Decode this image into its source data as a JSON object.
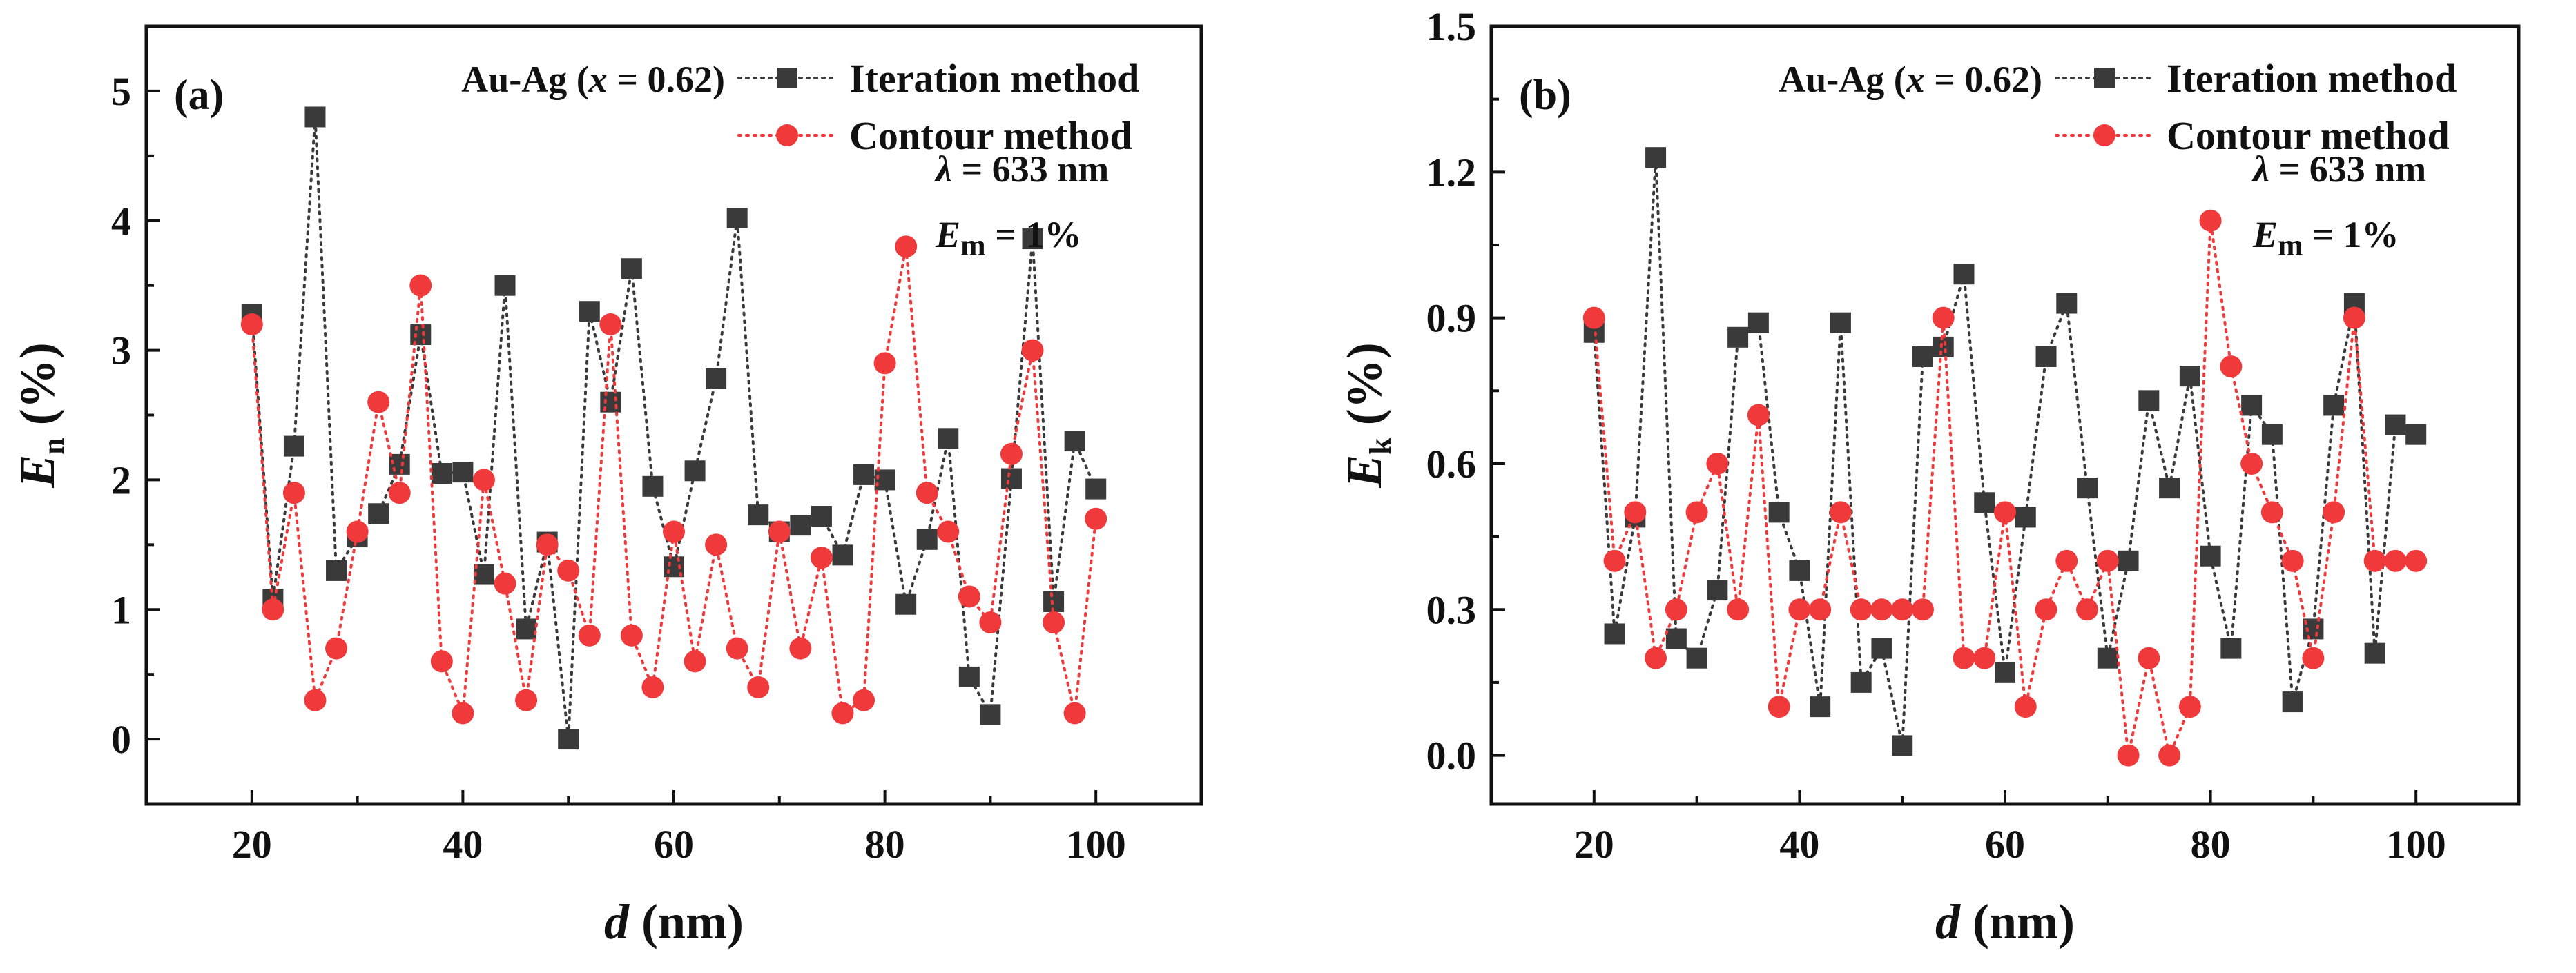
{
  "chart_data": [
    {
      "type": "line",
      "panel_label": "(a)",
      "xlabel": {
        "var": "d",
        "unit": "(nm)"
      },
      "ylabel": {
        "var": "E",
        "sub": "n",
        "unit": "(%)"
      },
      "xlim": [
        10,
        110
      ],
      "ylim": [
        -0.5,
        5.5
      ],
      "xticks": [
        20,
        40,
        60,
        80,
        100
      ],
      "yticks": [
        0,
        1,
        2,
        3,
        4,
        5
      ],
      "ytick_labels": [
        "0",
        "1",
        "2",
        "3",
        "4",
        "5"
      ],
      "annotation": {
        "material": "Au-Ag (",
        "material_var": "x",
        "material_value": " = 0.62)",
        "lambda_symbol": "λ",
        "lambda_value": " = 633 nm",
        "em_var": "E",
        "em_sub": "m",
        "em_value": " = 1%"
      },
      "x": [
        20,
        22,
        24,
        26,
        28,
        30,
        32,
        34,
        36,
        38,
        40,
        42,
        44,
        46,
        48,
        50,
        52,
        54,
        56,
        58,
        60,
        62,
        64,
        66,
        68,
        70,
        72,
        74,
        76,
        78,
        80,
        82,
        84,
        86,
        88,
        90,
        92,
        94,
        96,
        98,
        100
      ],
      "series": [
        {
          "name": "Iteration method",
          "color": "#3a3a3a",
          "marker": "square",
          "values": [
            3.28,
            1.08,
            2.26,
            4.8,
            1.3,
            1.56,
            1.74,
            2.12,
            3.12,
            2.05,
            2.06,
            1.27,
            3.5,
            0.85,
            1.52,
            0.0,
            3.3,
            2.6,
            3.63,
            1.95,
            1.33,
            2.07,
            2.78,
            4.02,
            1.73,
            1.6,
            1.65,
            1.72,
            1.42,
            2.04,
            2.0,
            1.04,
            1.54,
            2.32,
            0.48,
            0.19,
            2.01,
            3.86,
            1.06,
            2.3,
            1.93
          ]
        },
        {
          "name": "Contour method",
          "color": "#f0393b",
          "marker": "circle",
          "values": [
            3.2,
            1.0,
            1.9,
            0.3,
            0.7,
            1.6,
            2.6,
            1.9,
            3.5,
            0.6,
            0.2,
            2.0,
            1.2,
            0.3,
            1.5,
            1.3,
            0.8,
            3.2,
            0.8,
            0.4,
            1.6,
            0.6,
            1.5,
            0.7,
            0.4,
            1.6,
            0.7,
            1.4,
            0.2,
            0.3,
            2.9,
            3.8,
            1.9,
            1.6,
            1.1,
            0.9,
            2.2,
            3.0,
            0.9,
            0.2,
            1.7
          ]
        }
      ]
    },
    {
      "type": "line",
      "panel_label": "(b)",
      "xlabel": {
        "var": "d",
        "unit": "(nm)"
      },
      "ylabel": {
        "var": "E",
        "sub": "k",
        "unit": "(%)"
      },
      "xlim": [
        10,
        110
      ],
      "ylim": [
        -0.1,
        1.5
      ],
      "xticks": [
        20,
        40,
        60,
        80,
        100
      ],
      "yticks": [
        0.0,
        0.3,
        0.6,
        0.9,
        1.2,
        1.5
      ],
      "ytick_labels": [
        "0.0",
        "0.3",
        "0.6",
        "0.9",
        "1.2",
        "1.5"
      ],
      "annotation": {
        "material": "Au-Ag (",
        "material_var": "x",
        "material_value": " = 0.62)",
        "lambda_symbol": "λ",
        "lambda_value": " = 633 nm",
        "em_var": "E",
        "em_sub": "m",
        "em_value": " = 1%"
      },
      "x": [
        20,
        22,
        24,
        26,
        28,
        30,
        32,
        34,
        36,
        38,
        40,
        42,
        44,
        46,
        48,
        50,
        52,
        54,
        56,
        58,
        60,
        62,
        64,
        66,
        68,
        70,
        72,
        74,
        76,
        78,
        80,
        82,
        84,
        86,
        88,
        90,
        92,
        94,
        96,
        98,
        100
      ],
      "series": [
        {
          "name": "Iteration method",
          "color": "#3a3a3a",
          "marker": "square",
          "values": [
            0.87,
            0.25,
            0.49,
            1.23,
            0.24,
            0.2,
            0.34,
            0.86,
            0.89,
            0.5,
            0.38,
            0.1,
            0.89,
            0.15,
            0.22,
            0.02,
            0.82,
            0.84,
            0.99,
            0.52,
            0.17,
            0.49,
            0.82,
            0.93,
            0.55,
            0.2,
            0.4,
            0.73,
            0.55,
            0.78,
            0.41,
            0.22,
            0.72,
            0.66,
            0.11,
            0.26,
            0.72,
            0.93,
            0.21,
            0.68,
            0.66
          ]
        },
        {
          "name": "Contour method",
          "color": "#f0393b",
          "marker": "circle",
          "values": [
            0.9,
            0.4,
            0.5,
            0.2,
            0.3,
            0.5,
            0.6,
            0.3,
            0.7,
            0.1,
            0.3,
            0.3,
            0.5,
            0.3,
            0.3,
            0.3,
            0.3,
            0.9,
            0.2,
            0.2,
            0.5,
            0.1,
            0.3,
            0.4,
            0.3,
            0.4,
            0.0,
            0.2,
            0.0,
            0.1,
            1.1,
            0.8,
            0.6,
            0.5,
            0.4,
            0.2,
            0.5,
            0.9,
            0.4,
            0.4,
            0.4
          ]
        }
      ]
    }
  ]
}
